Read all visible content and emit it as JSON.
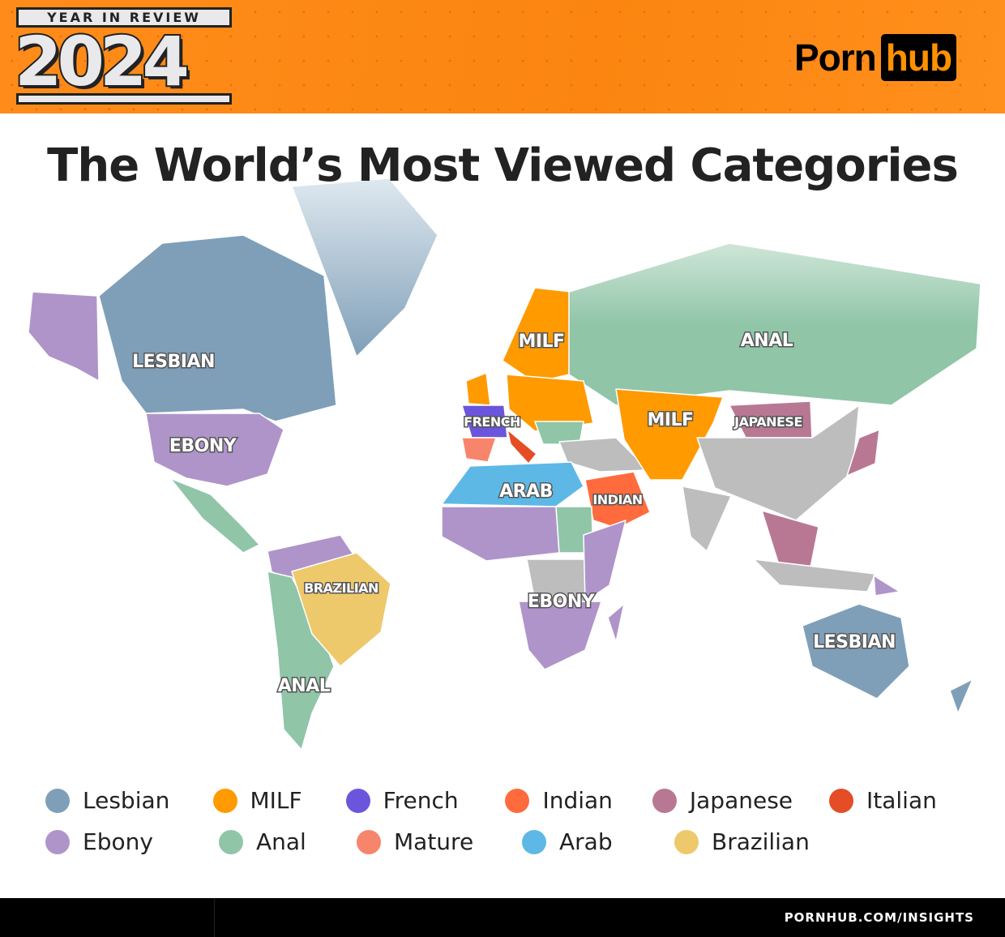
{
  "header": {
    "badge_top": "YEAR IN REVIEW",
    "badge_year": "2024",
    "logo_part1": "Porn",
    "logo_part2": "hub"
  },
  "title": "The World’s Most Viewed Categories",
  "categories": {
    "lesbian": {
      "label": "Lesbian",
      "color": "#7f9fb8"
    },
    "milf": {
      "label": "MILF",
      "color": "#ff9a00"
    },
    "french": {
      "label": "French",
      "color": "#6c55dd"
    },
    "indian": {
      "label": "Indian",
      "color": "#ff6b3d"
    },
    "japanese": {
      "label": "Japanese",
      "color": "#b87893"
    },
    "italian": {
      "label": "Italian",
      "color": "#e44d25"
    },
    "ebony": {
      "label": "Ebony",
      "color": "#af94ca"
    },
    "anal": {
      "label": "Anal",
      "color": "#90c5a8"
    },
    "mature": {
      "label": "Mature",
      "color": "#f7856c"
    },
    "arab": {
      "label": "Arab",
      "color": "#5db8e6"
    },
    "brazilian": {
      "label": "Brazilian",
      "color": "#eec96b"
    },
    "none": {
      "color": "#bdbdbd"
    }
  },
  "map_labels": [
    {
      "text": "LESBIAN",
      "region": "North America (Canada)"
    },
    {
      "text": "EBONY",
      "region": "United States"
    },
    {
      "text": "BRAZILIAN",
      "region": "Brazil"
    },
    {
      "text": "ANAL",
      "region": "South America"
    },
    {
      "text": "MILF",
      "region": "Northern Europe"
    },
    {
      "text": "FRENCH",
      "region": "France"
    },
    {
      "text": "ARAB",
      "region": "North Africa"
    },
    {
      "text": "INDIAN",
      "region": "Arabian Peninsula"
    },
    {
      "text": "EBONY",
      "region": "Sub-Saharan Africa"
    },
    {
      "text": "ANAL",
      "region": "Russia"
    },
    {
      "text": "MILF",
      "region": "Central Asia"
    },
    {
      "text": "JAPANESE",
      "region": "Mongolia"
    },
    {
      "text": "LESBIAN",
      "region": "Australia"
    }
  ],
  "legend_rows": [
    [
      "lesbian",
      "milf",
      "french",
      "indian",
      "japanese",
      "italian"
    ],
    [
      "ebony",
      "anal",
      "mature",
      "arab",
      "brazilian"
    ]
  ],
  "footer": {
    "url": "PORNHUB.COM/INSIGHTS"
  }
}
